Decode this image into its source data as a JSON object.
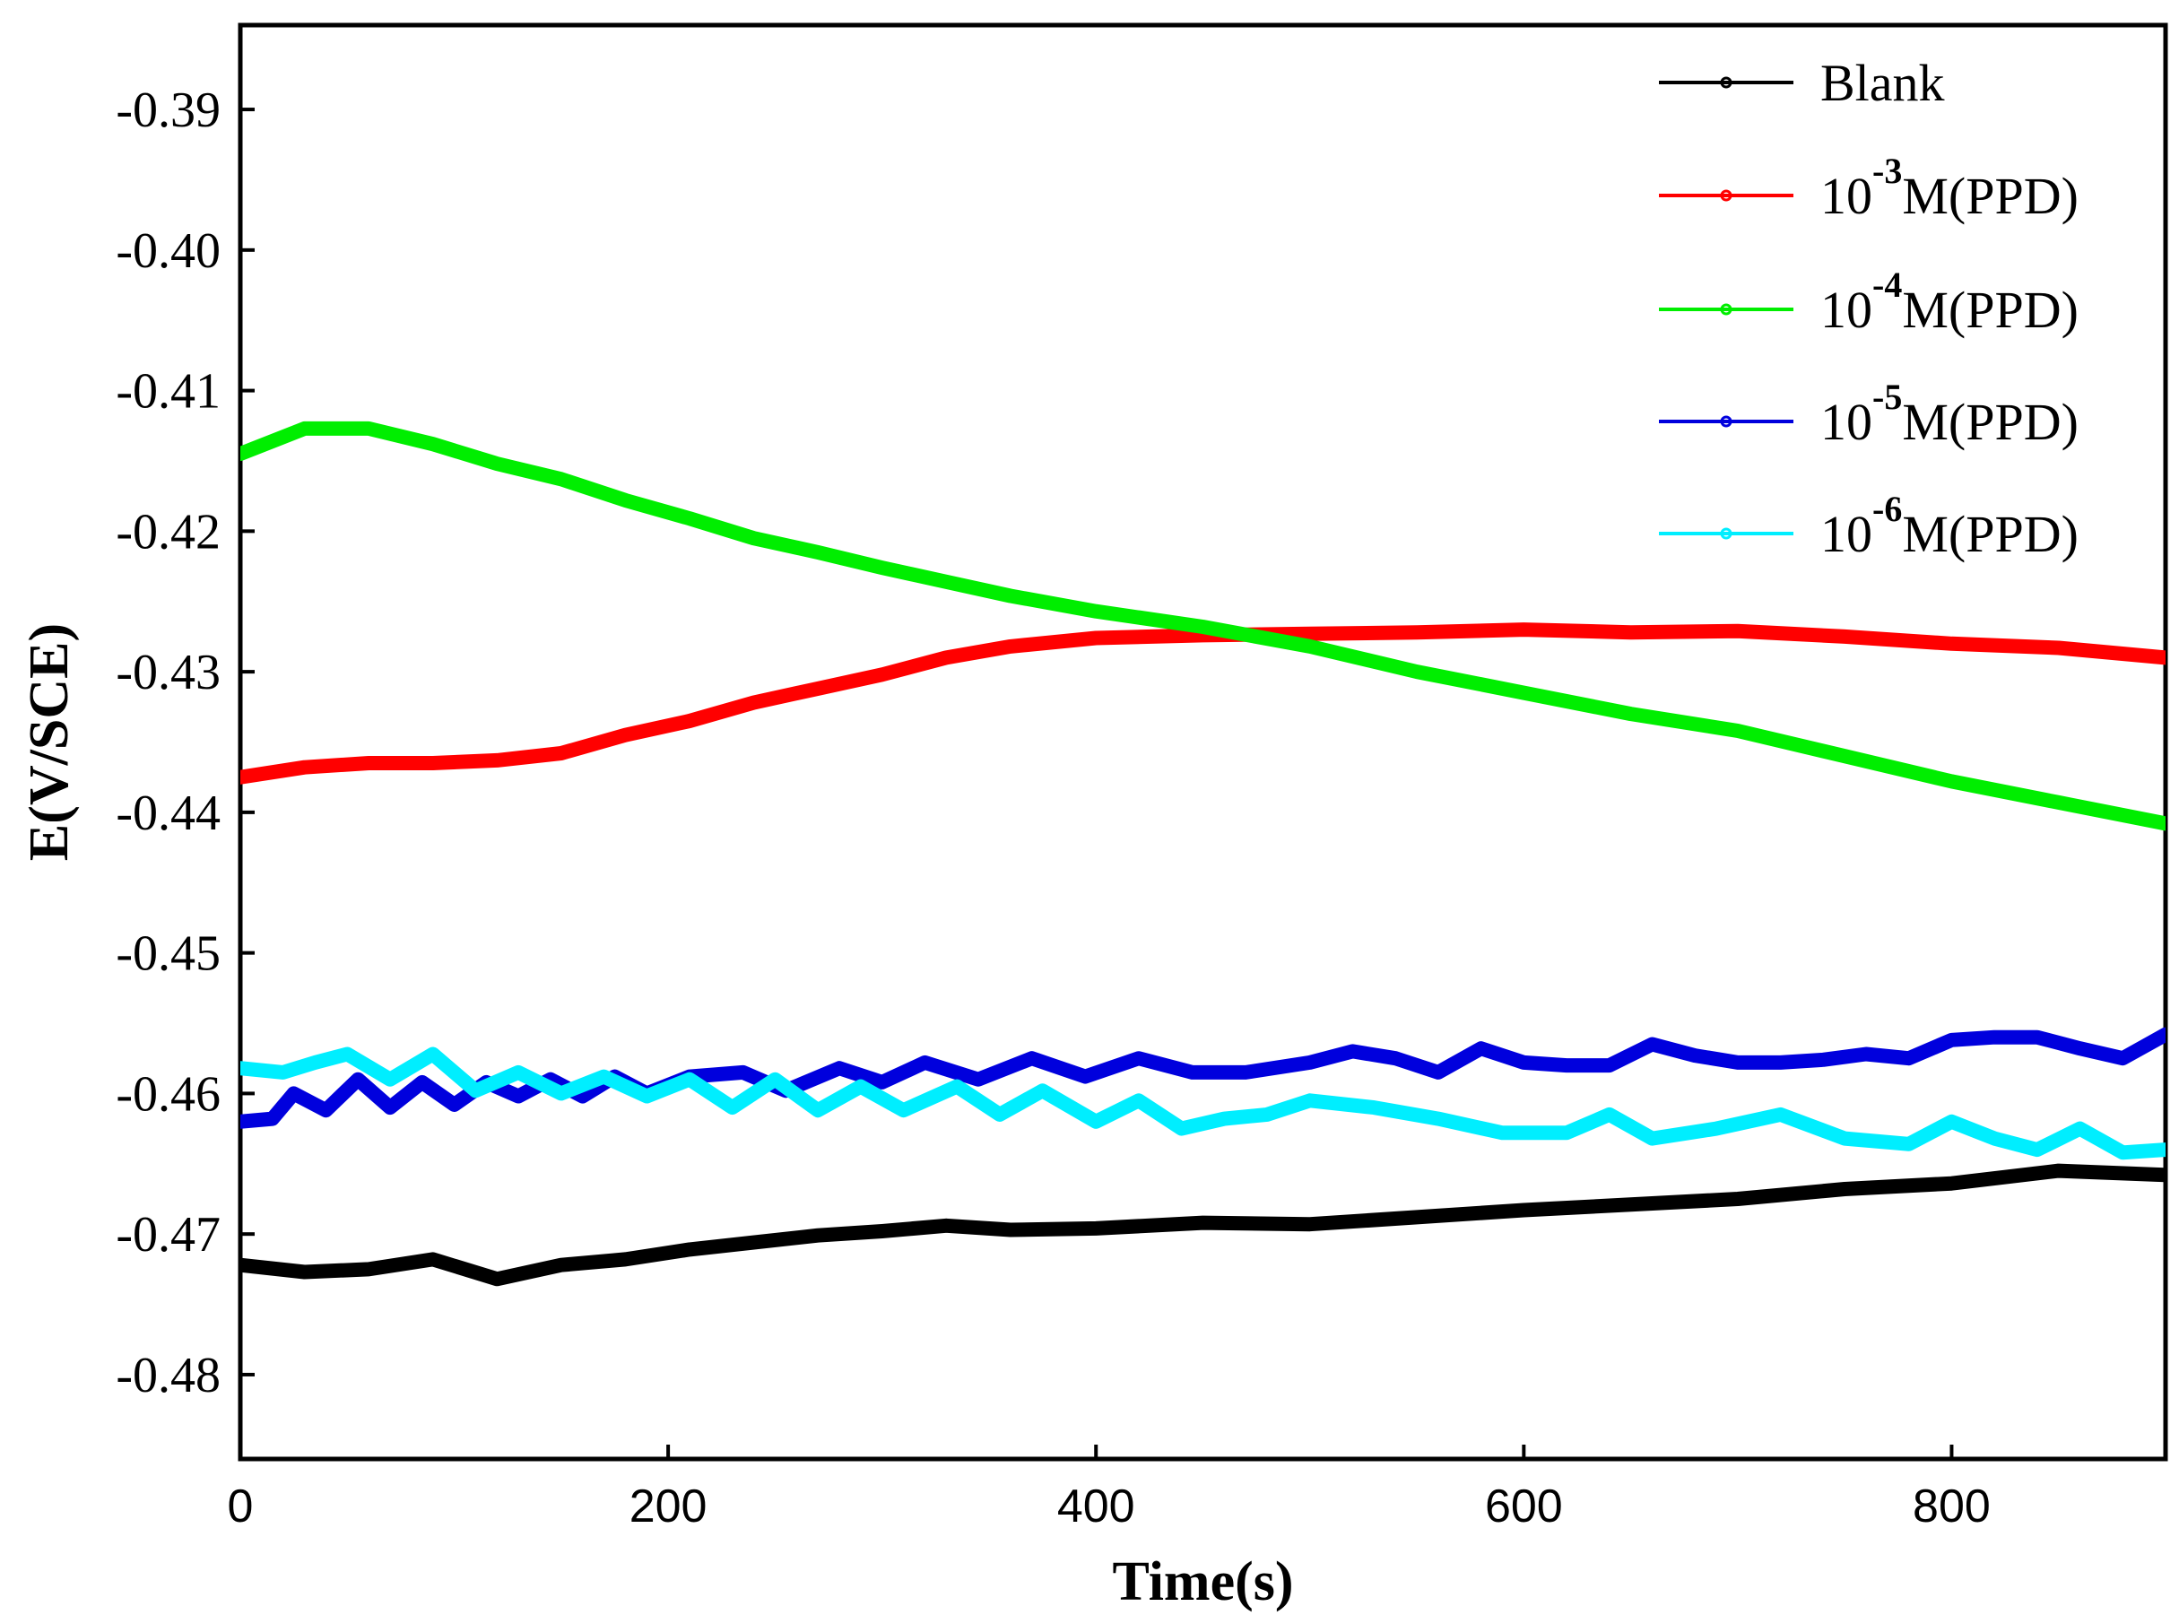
{
  "chart_data": {
    "type": "line",
    "title": "",
    "xlabel": "Time(s)",
    "ylabel": "E(V/SCE)",
    "xlim": [
      0,
      900
    ],
    "ylim": [
      -0.486,
      -0.384
    ],
    "xticks": [
      0,
      200,
      400,
      600,
      800
    ],
    "xtick_labels": [
      "0",
      "200",
      "400",
      "600",
      "800"
    ],
    "yticks": [
      -0.39,
      -0.4,
      -0.41,
      -0.42,
      -0.43,
      -0.44,
      -0.45,
      -0.46,
      -0.47,
      -0.48
    ],
    "ytick_labels": [
      "-0.39",
      "-0.40",
      "-0.41",
      "-0.42",
      "-0.43",
      "-0.44",
      "-0.45",
      "-0.46",
      "-0.47",
      "-0.48"
    ],
    "grid": false,
    "legend_position": "top-right",
    "series": [
      {
        "name": "Blank",
        "legend": {
          "prefix": "Blank",
          "sup": "",
          "suffix": ""
        },
        "color": "#000000",
        "x": [
          0,
          30,
          60,
          90,
          120,
          150,
          180,
          210,
          240,
          270,
          300,
          330,
          360,
          400,
          450,
          500,
          550,
          600,
          650,
          700,
          750,
          800,
          850,
          900
        ],
        "y": [
          -0.4722,
          -0.4727,
          -0.4725,
          -0.4718,
          -0.4732,
          -0.4722,
          -0.4718,
          -0.4711,
          -0.4706,
          -0.4701,
          -0.4698,
          -0.4694,
          -0.4697,
          -0.4696,
          -0.4692,
          -0.4693,
          -0.4688,
          -0.4683,
          -0.4679,
          -0.4675,
          -0.4668,
          -0.4664,
          -0.4655,
          -0.4658
        ]
      },
      {
        "name": "10-3M(PPD)",
        "legend": {
          "prefix": "10",
          "sup": "-3",
          "suffix": "M(PPD)"
        },
        "color": "#ff0000",
        "x": [
          0,
          30,
          60,
          90,
          120,
          150,
          180,
          210,
          240,
          270,
          300,
          330,
          360,
          400,
          450,
          500,
          550,
          600,
          650,
          700,
          750,
          800,
          850,
          900
        ],
        "y": [
          -0.4375,
          -0.4368,
          -0.4365,
          -0.4365,
          -0.4363,
          -0.4358,
          -0.4345,
          -0.4335,
          -0.4322,
          -0.4312,
          -0.4302,
          -0.429,
          -0.4282,
          -0.4276,
          -0.4274,
          -0.4273,
          -0.4272,
          -0.427,
          -0.4272,
          -0.4271,
          -0.4275,
          -0.428,
          -0.4283,
          -0.429
        ]
      },
      {
        "name": "10-4M(PPD)",
        "legend": {
          "prefix": "10",
          "sup": "-4",
          "suffix": "M(PPD)"
        },
        "color": "#00ee00",
        "x": [
          0,
          30,
          60,
          90,
          120,
          150,
          180,
          210,
          240,
          270,
          300,
          330,
          360,
          400,
          450,
          500,
          550,
          600,
          650,
          700,
          750,
          800,
          850,
          900
        ],
        "y": [
          -0.4145,
          -0.4127,
          -0.4127,
          -0.4138,
          -0.4152,
          -0.4163,
          -0.4178,
          -0.4191,
          -0.4205,
          -0.4215,
          -0.4226,
          -0.4236,
          -0.4246,
          -0.4257,
          -0.4268,
          -0.4282,
          -0.43,
          -0.4315,
          -0.433,
          -0.4342,
          -0.436,
          -0.4378,
          -0.4393,
          -0.4408
        ]
      },
      {
        "name": "10-5M(PPD)",
        "legend": {
          "prefix": "10",
          "sup": "-5",
          "suffix": "M(PPD)"
        },
        "color": "#0000dd",
        "x": [
          0,
          15,
          25,
          40,
          55,
          70,
          85,
          100,
          115,
          130,
          145,
          160,
          175,
          190,
          210,
          235,
          255,
          280,
          300,
          320,
          345,
          370,
          395,
          420,
          445,
          470,
          500,
          520,
          540,
          560,
          580,
          600,
          620,
          640,
          660,
          680,
          700,
          720,
          740,
          760,
          780,
          800,
          820,
          840,
          860,
          880,
          900
        ],
        "y": [
          -0.462,
          -0.4618,
          -0.46,
          -0.4612,
          -0.459,
          -0.461,
          -0.4592,
          -0.4608,
          -0.4592,
          -0.4602,
          -0.459,
          -0.4602,
          -0.4588,
          -0.46,
          -0.4588,
          -0.4585,
          -0.4598,
          -0.4582,
          -0.4592,
          -0.4578,
          -0.459,
          -0.4575,
          -0.4588,
          -0.4575,
          -0.4585,
          -0.4585,
          -0.4578,
          -0.457,
          -0.4575,
          -0.4585,
          -0.4568,
          -0.4578,
          -0.458,
          -0.458,
          -0.4565,
          -0.4573,
          -0.4578,
          -0.4578,
          -0.4576,
          -0.4572,
          -0.4575,
          -0.4562,
          -0.456,
          -0.456,
          -0.4568,
          -0.4575,
          -0.4558
        ]
      },
      {
        "name": "10-6M(PPD)",
        "legend": {
          "prefix": "10",
          "sup": "-6",
          "suffix": "M(PPD)"
        },
        "color": "#00eeff",
        "x": [
          0,
          20,
          35,
          50,
          70,
          90,
          110,
          130,
          150,
          170,
          190,
          210,
          230,
          250,
          270,
          290,
          310,
          335,
          355,
          375,
          400,
          420,
          440,
          460,
          480,
          500,
          530,
          560,
          590,
          620,
          640,
          660,
          690,
          720,
          750,
          780,
          800,
          820,
          840,
          860,
          880,
          900
        ],
        "y": [
          -0.4582,
          -0.4585,
          -0.4578,
          -0.4572,
          -0.459,
          -0.4572,
          -0.4598,
          -0.4585,
          -0.46,
          -0.4588,
          -0.4602,
          -0.459,
          -0.461,
          -0.459,
          -0.4612,
          -0.4595,
          -0.4612,
          -0.4595,
          -0.4615,
          -0.4598,
          -0.462,
          -0.4605,
          -0.4625,
          -0.4618,
          -0.4615,
          -0.4605,
          -0.461,
          -0.4618,
          -0.4628,
          -0.4628,
          -0.4615,
          -0.4632,
          -0.4625,
          -0.4615,
          -0.4632,
          -0.4636,
          -0.462,
          -0.4632,
          -0.464,
          -0.4625,
          -0.4642,
          -0.464
        ]
      }
    ]
  }
}
